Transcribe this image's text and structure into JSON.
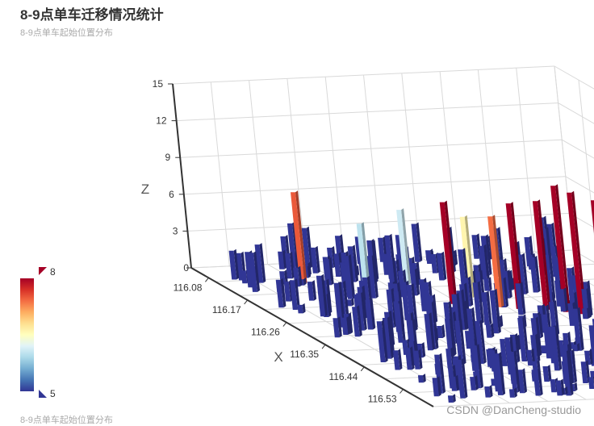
{
  "header": {
    "title": "8-9点单车迁移情况统计",
    "subtitle": "8-9点单车起始位置分布"
  },
  "footer": {
    "series_label": "8-9点单车起始位置分布",
    "watermark": "CSDN @DanCheng-studio"
  },
  "visual_map": {
    "min_label": "5",
    "max_label": "8",
    "min": 5,
    "max": 8,
    "colors": [
      "#313695",
      "#4575b4",
      "#74add1",
      "#abd9e9",
      "#e0f3f8",
      "#ffffbf",
      "#fee090",
      "#fdae61",
      "#f46d43",
      "#d73027",
      "#a50026"
    ]
  },
  "chart_data": {
    "type": "bar3D",
    "title": "8-9点单车迁移情况统计",
    "subtitle": "8-9点单车起始位置分布",
    "xlabel": "X",
    "ylabel": "",
    "zlabel": "Z",
    "x_ticks": [
      "116.08",
      "116.17",
      "116.26",
      "116.35",
      "116.44",
      "116.53"
    ],
    "z_ticks": [
      "0",
      "3",
      "6",
      "9",
      "12",
      "15"
    ],
    "zlim": [
      0,
      15
    ],
    "grid": true,
    "legend": "none",
    "series": [
      {
        "name": "8-9点单车起始位置分布",
        "points": [
          {
            "x": 116.12,
            "y": 0.2,
            "z": 7.5
          },
          {
            "x": 116.14,
            "y": 0.45,
            "z": 6.1
          },
          {
            "x": 116.18,
            "y": 0.3,
            "z": 6.0
          },
          {
            "x": 116.2,
            "y": 0.55,
            "z": 6.6
          },
          {
            "x": 116.22,
            "y": 0.48,
            "z": 8.3
          },
          {
            "x": 116.24,
            "y": 0.58,
            "z": 7.4
          },
          {
            "x": 116.25,
            "y": 0.62,
            "z": 8.6
          },
          {
            "x": 116.26,
            "y": 0.68,
            "z": 8.9
          },
          {
            "x": 116.27,
            "y": 0.72,
            "z": 10.3
          },
          {
            "x": 116.28,
            "y": 0.75,
            "z": 9.9
          },
          {
            "x": 116.29,
            "y": 0.8,
            "z": 9.4
          },
          {
            "x": 116.31,
            "y": 0.85,
            "z": 8.7
          },
          {
            "x": 116.33,
            "y": 0.88,
            "z": 7.5
          },
          {
            "x": 116.36,
            "y": 0.92,
            "z": 7.1
          },
          {
            "x": 116.38,
            "y": 0.95,
            "z": 11.6
          }
        ]
      }
    ]
  }
}
